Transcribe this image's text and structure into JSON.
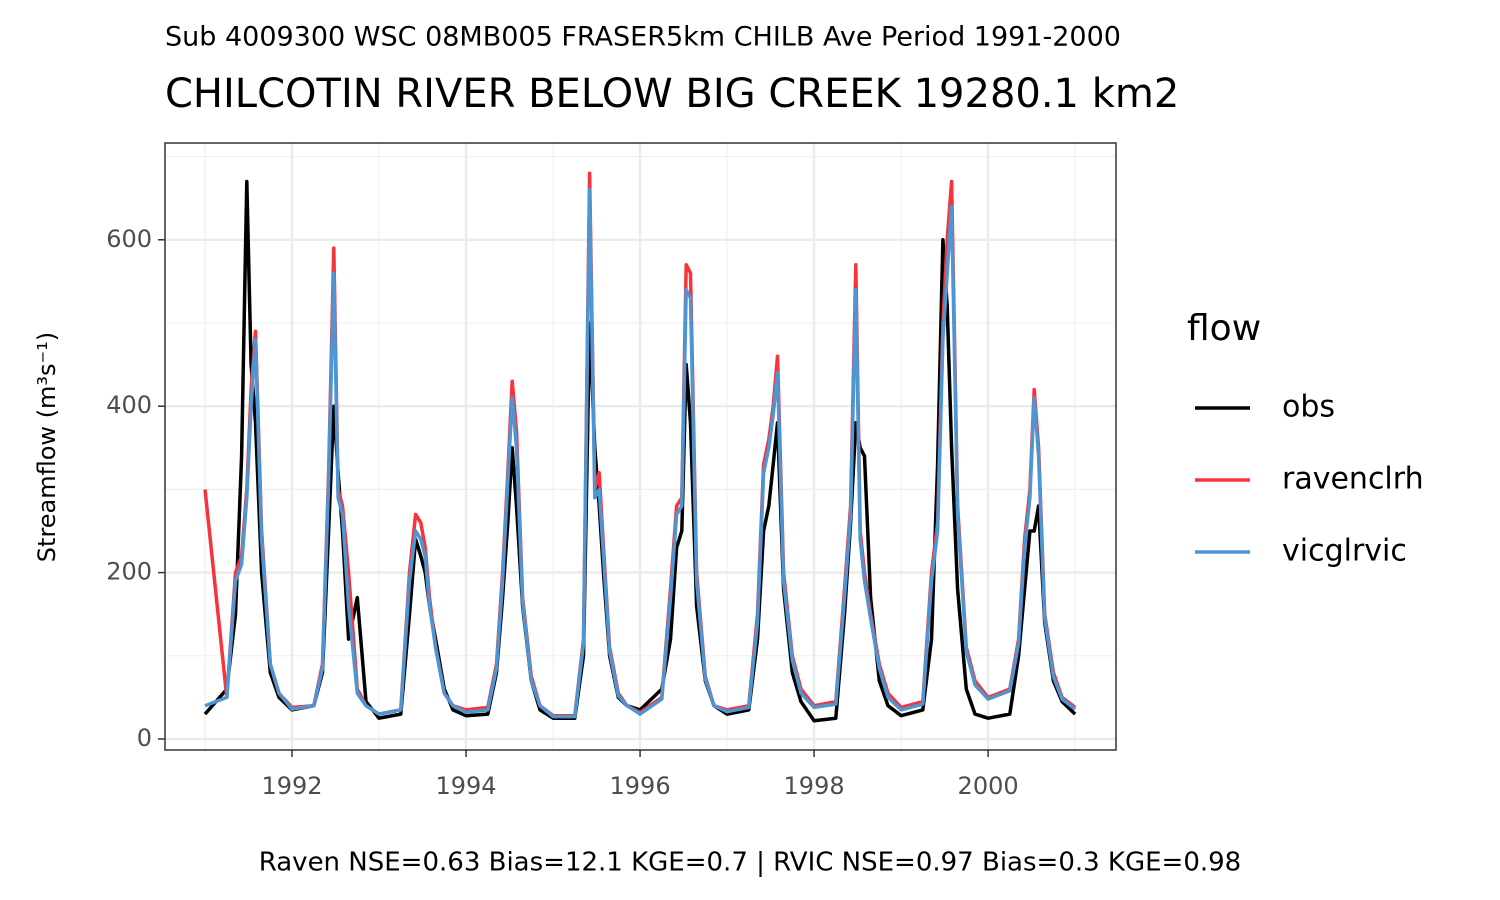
{
  "chart_data": {
    "type": "line",
    "subtitle": "Sub 4009300 WSC 08MB005 FRASER5km CHILB Ave Period 1991-2000",
    "title": "CHILCOTIN RIVER BELOW BIG CREEK 19280.1 km2",
    "y_label": "Streamflow (m³s⁻¹)",
    "caption": "Raven NSE=0.63 Bias=12.1 KGE=0.7 | RVIC NSE=0.97 Bias=0.3 KGE=0.98",
    "legend_title": "flow",
    "xlim": [
      1990.54,
      2001.47
    ],
    "xticks": [
      1992,
      1994,
      1996,
      1998,
      2000
    ],
    "ylim": [
      -13.2,
      716.3
    ],
    "yticks": [
      0,
      200,
      400,
      600
    ],
    "grid": true,
    "x": [
      1991,
      1991.25,
      1991.35,
      1991.42,
      1991.48,
      1991.53,
      1991.58,
      1991.65,
      1991.75,
      1991.85,
      1992,
      1992.25,
      1992.35,
      1992.42,
      1992.48,
      1992.53,
      1992.58,
      1992.65,
      1992.75,
      1992.85,
      1993,
      1993.25,
      1993.35,
      1993.42,
      1993.48,
      1993.53,
      1993.58,
      1993.65,
      1993.75,
      1993.85,
      1994,
      1994.25,
      1994.35,
      1994.42,
      1994.48,
      1994.53,
      1994.58,
      1994.65,
      1994.75,
      1994.85,
      1995,
      1995.25,
      1995.35,
      1995.42,
      1995.48,
      1995.53,
      1995.58,
      1995.65,
      1995.75,
      1995.85,
      1996,
      1996.25,
      1996.35,
      1996.42,
      1996.48,
      1996.53,
      1996.58,
      1996.65,
      1996.75,
      1996.85,
      1997,
      1997.25,
      1997.35,
      1997.42,
      1997.48,
      1997.53,
      1997.58,
      1997.65,
      1997.75,
      1997.85,
      1998,
      1998.25,
      1998.35,
      1998.42,
      1998.48,
      1998.53,
      1998.58,
      1998.65,
      1998.75,
      1998.85,
      1999,
      1999.25,
      1999.35,
      1999.42,
      1999.48,
      1999.53,
      1999.58,
      1999.65,
      1999.75,
      1999.85,
      2000,
      2000.25,
      2000.35,
      2000.42,
      2000.48,
      2000.53,
      2000.58,
      2000.65,
      2000.75,
      2000.85,
      2001
    ],
    "series": [
      {
        "name": "obs",
        "color": "#000000",
        "values": [
          30,
          60,
          150,
          340,
          670,
          450,
          380,
          200,
          80,
          50,
          35,
          40,
          80,
          250,
          400,
          320,
          250,
          120,
          170,
          45,
          25,
          30,
          150,
          240,
          220,
          200,
          160,
          120,
          60,
          35,
          28,
          30,
          80,
          170,
          260,
          350,
          280,
          160,
          70,
          35,
          25,
          25,
          100,
          500,
          350,
          280,
          200,
          100,
          50,
          40,
          35,
          60,
          120,
          230,
          250,
          450,
          380,
          160,
          70,
          40,
          30,
          35,
          120,
          250,
          280,
          330,
          380,
          180,
          80,
          45,
          22,
          25,
          150,
          260,
          380,
          350,
          340,
          170,
          70,
          40,
          28,
          35,
          120,
          330,
          600,
          520,
          350,
          180,
          60,
          30,
          25,
          30,
          100,
          180,
          250,
          250,
          280,
          140,
          70,
          45,
          30
        ]
      },
      {
        "name": "ravenclrh",
        "color": "#f8333a",
        "values": [
          300,
          50,
          200,
          220,
          300,
          420,
          490,
          250,
          90,
          55,
          38,
          40,
          90,
          320,
          590,
          300,
          280,
          200,
          60,
          40,
          30,
          35,
          200,
          270,
          260,
          230,
          170,
          110,
          55,
          40,
          35,
          38,
          90,
          200,
          320,
          430,
          370,
          170,
          75,
          40,
          28,
          28,
          120,
          680,
          300,
          320,
          230,
          110,
          55,
          40,
          32,
          50,
          180,
          280,
          290,
          570,
          560,
          200,
          75,
          40,
          35,
          40,
          150,
          330,
          360,
          400,
          460,
          200,
          100,
          60,
          40,
          45,
          180,
          280,
          570,
          250,
          200,
          150,
          90,
          55,
          38,
          45,
          200,
          260,
          500,
          600,
          670,
          280,
          110,
          70,
          50,
          60,
          120,
          240,
          300,
          420,
          350,
          150,
          80,
          50,
          38
        ]
      },
      {
        "name": "vicglrvic",
        "color": "#4e95d1",
        "values": [
          40,
          50,
          190,
          210,
          290,
          400,
          480,
          240,
          90,
          55,
          36,
          40,
          85,
          310,
          560,
          290,
          270,
          160,
          55,
          40,
          30,
          35,
          190,
          250,
          240,
          220,
          160,
          110,
          55,
          40,
          32,
          35,
          85,
          190,
          310,
          410,
          350,
          165,
          70,
          40,
          27,
          27,
          115,
          660,
          290,
          300,
          220,
          105,
          52,
          40,
          30,
          48,
          170,
          270,
          280,
          540,
          530,
          190,
          72,
          40,
          33,
          38,
          140,
          320,
          350,
          390,
          440,
          190,
          95,
          55,
          38,
          42,
          170,
          270,
          540,
          240,
          190,
          145,
          85,
          50,
          35,
          42,
          190,
          250,
          480,
          560,
          640,
          270,
          105,
          65,
          48,
          58,
          115,
          230,
          290,
          410,
          340,
          145,
          75,
          48,
          36
        ]
      }
    ]
  }
}
